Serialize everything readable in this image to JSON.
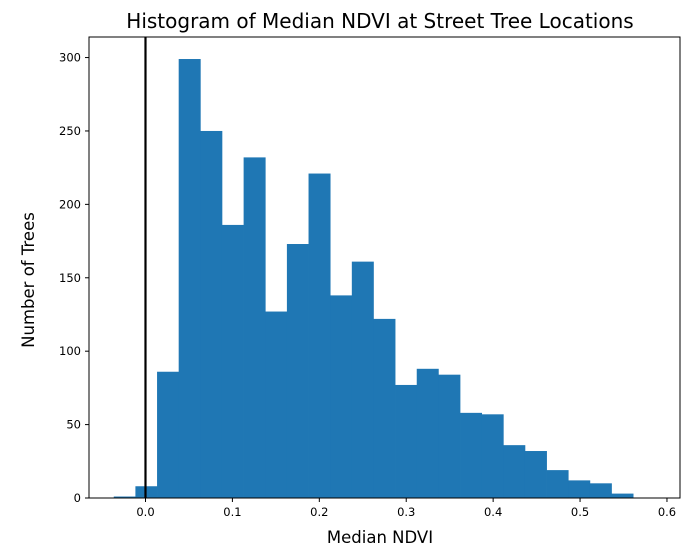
{
  "chart_data": {
    "type": "bar",
    "title": "Histogram of Median NDVI at Street Tree Locations",
    "xlabel": "Median NDVI",
    "ylabel": "Number of Trees",
    "xlim": [
      -0.065,
      0.615
    ],
    "ylim": [
      0,
      314
    ],
    "xticks": [
      0.0,
      0.1,
      0.2,
      0.3,
      0.4,
      0.5,
      0.6
    ],
    "xtick_labels": [
      "0.0",
      "0.1",
      "0.2",
      "0.3",
      "0.4",
      "0.5",
      "0.6"
    ],
    "yticks": [
      0,
      50,
      100,
      150,
      200,
      250,
      300
    ],
    "ytick_labels": [
      "0",
      "50",
      "100",
      "150",
      "200",
      "250",
      "300"
    ],
    "bin_edges": [
      -0.0365,
      -0.0116,
      0.0133,
      0.0382,
      0.0631,
      0.088,
      0.1129,
      0.1378,
      0.1627,
      0.1876,
      0.2125,
      0.2374,
      0.2623,
      0.2872,
      0.3121,
      0.337,
      0.3619,
      0.3868,
      0.4117,
      0.4366,
      0.4615,
      0.4864,
      0.5113,
      0.5362,
      0.5611,
      0.586
    ],
    "values": [
      1,
      8,
      86,
      299,
      250,
      186,
      232,
      127,
      173,
      221,
      138,
      161,
      122,
      77,
      88,
      84,
      58,
      57,
      36,
      32,
      19,
      12,
      10,
      3,
      0
    ],
    "bar_color": "#1f77b4",
    "vline": {
      "x": 0.0,
      "color": "#000000"
    },
    "grid": false
  }
}
